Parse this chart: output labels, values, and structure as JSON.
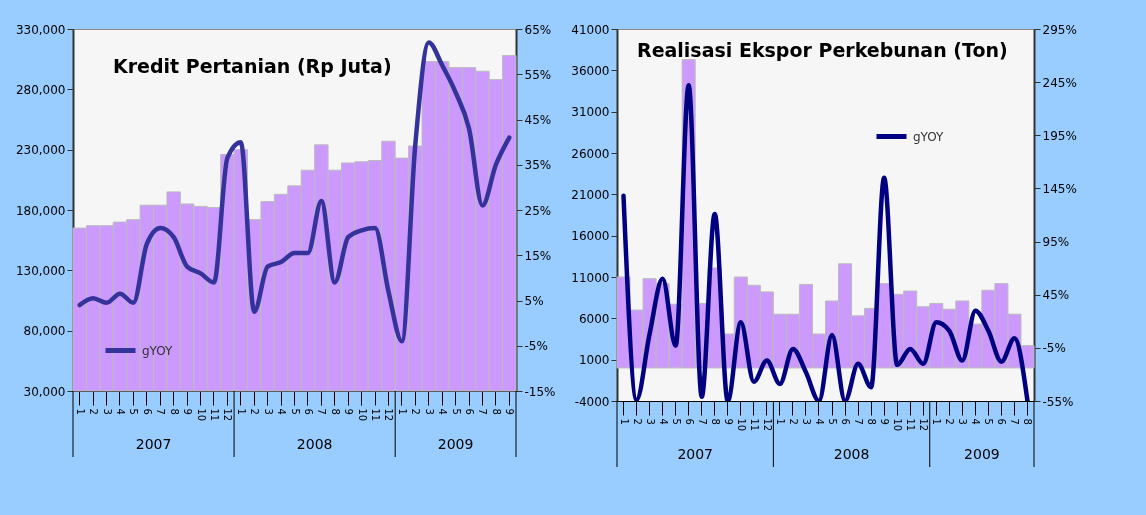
{
  "chart_data": [
    {
      "type": "bar",
      "title": "Kredit Pertanian (Rp Juta)",
      "categories": [
        "1",
        "2",
        "3",
        "4",
        "5",
        "6",
        "7",
        "8",
        "9",
        "10",
        "11",
        "12",
        "1",
        "2",
        "3",
        "4",
        "5",
        "6",
        "7",
        "8",
        "9",
        "10",
        "11",
        "12",
        "1",
        "2",
        "3",
        "4",
        "5",
        "6",
        "7",
        "8",
        "9"
      ],
      "series": [
        {
          "color": "#cc99ff",
          "values": [
            165000,
            167000,
            167000,
            170000,
            172000,
            184000,
            184000,
            195000,
            185000,
            183000,
            182000,
            226000,
            230000,
            172000,
            187000,
            193000,
            200000,
            213000,
            234000,
            213000,
            219000,
            220000,
            221000,
            237000,
            223000,
            233000,
            303000,
            303000,
            298000,
            298000,
            295000,
            288000,
            308000
          ]
        },
        {
          "type": "line",
          "name": "gYOY",
          "axis": "y2",
          "color": "#333399",
          "values": [
            4,
            5.5,
            4.5,
            6.5,
            4.5,
            17.5,
            21,
            19,
            12.5,
            11,
            9,
            36.5,
            40,
            2.5,
            12.5,
            13.5,
            15.5,
            15.5,
            27,
            9,
            19,
            20.5,
            21,
            7,
            -4,
            39.5,
            62,
            57,
            51,
            43,
            26,
            35,
            41
          ]
        }
      ],
      "ylim": [
        30000,
        330000
      ],
      "yticks": [
        {
          "value": 30000,
          "label": "30,000"
        },
        {
          "value": 80000,
          "label": "80,000"
        },
        {
          "value": 130000,
          "label": "130,000"
        },
        {
          "value": 180000,
          "label": "180,000"
        },
        {
          "value": 230000,
          "label": "230,000"
        },
        {
          "value": 280000,
          "label": "280,000"
        },
        {
          "value": 330000,
          "label": "330,000"
        }
      ],
      "y2lim": [
        -15,
        65
      ],
      "y2ticks": [
        {
          "value": -15,
          "label": "-15%"
        },
        {
          "value": -5,
          "label": "-5%"
        },
        {
          "value": 5,
          "label": "5%"
        },
        {
          "value": 15,
          "label": "15%"
        },
        {
          "value": 25,
          "label": "25%"
        },
        {
          "value": 35,
          "label": "35%"
        },
        {
          "value": 45,
          "label": "45%"
        },
        {
          "value": 55,
          "label": "55%"
        },
        {
          "value": 65,
          "label": "65%"
        }
      ],
      "annotations": [
        "2007",
        "2008",
        "2009"
      ],
      "legend": "bottom left"
    },
    {
      "type": "bar",
      "title": "Realisasi Ekspor Perkebunan (Ton)",
      "categories": [
        "1",
        "2",
        "3",
        "4",
        "5",
        "6",
        "7",
        "8",
        "9",
        "10",
        "11",
        "12",
        "1",
        "2",
        "3",
        "4",
        "5",
        "6",
        "7",
        "8",
        "9",
        "10",
        "11",
        "12",
        "1",
        "2",
        "3",
        "4",
        "5",
        "6",
        "7",
        "8"
      ],
      "series": [
        {
          "color": "#cc99ff",
          "values": [
            11000,
            7000,
            10800,
            10200,
            7700,
            37300,
            7800,
            12100,
            4100,
            11000,
            10000,
            9200,
            6500,
            6500,
            10100,
            4100,
            8100,
            12600,
            6300,
            7200,
            10200,
            8900,
            9300,
            7400,
            7800,
            7100,
            8100,
            5300,
            9400,
            10200,
            6500,
            2700
          ]
        },
        {
          "type": "line",
          "name": "gYOY",
          "axis": "y2",
          "color": "#000080",
          "values": [
            138,
            -54,
            8,
            60,
            -3,
            242,
            -51,
            121,
            -55,
            19,
            -37,
            -17,
            -39,
            -6,
            -28,
            -55,
            7,
            -55,
            -20,
            -42,
            155,
            -21,
            -6,
            -20,
            19,
            11,
            -17,
            30,
            11,
            -18,
            4,
            -55
          ]
        }
      ],
      "ylim": [
        -4000,
        41000
      ],
      "yticks": [
        -4000,
        1000,
        6000,
        11000,
        16000,
        21000,
        26000,
        31000,
        36000,
        41000
      ],
      "y2lim": [
        -55,
        295
      ],
      "y2ticks": [
        {
          "value": -55,
          "label": "-55%"
        },
        {
          "value": -5,
          "label": "-5%"
        },
        {
          "value": 45,
          "label": "45%"
        },
        {
          "value": 95,
          "label": "95%"
        },
        {
          "value": 145,
          "label": "145%"
        },
        {
          "value": 195,
          "label": "195%"
        },
        {
          "value": 245,
          "label": "245%"
        },
        {
          "value": 295,
          "label": "295%"
        }
      ],
      "annotations": [
        "2007",
        "2008",
        "2009"
      ],
      "legend": "top right"
    }
  ]
}
